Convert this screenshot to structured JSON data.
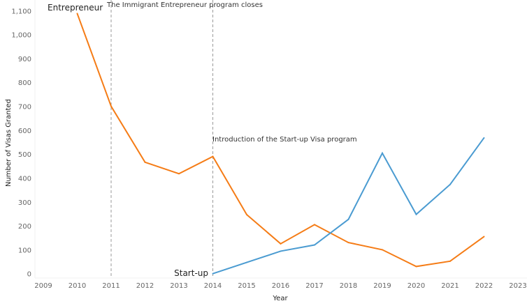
{
  "chart_data": {
    "type": "line",
    "title": "",
    "xlabel": "Year",
    "ylabel": "Number of Visas Granted",
    "xlim": [
      2009,
      2023
    ],
    "ylim": [
      0,
      1100
    ],
    "x_ticks": [
      "2009",
      "2010",
      "2011",
      "2012",
      "2013",
      "2014",
      "2015",
      "2016",
      "2017",
      "2018",
      "2019",
      "2020",
      "2021",
      "2022",
      "2023"
    ],
    "y_ticks": [
      "0",
      "100",
      "200",
      "300",
      "400",
      "500",
      "600",
      "700",
      "800",
      "900",
      "1,000",
      "1,100"
    ],
    "grid": false,
    "series": [
      {
        "name": "Entrepreneur",
        "color": "#f57c16",
        "x": [
          2010,
          2011,
          2012,
          2013,
          2014,
          2015,
          2016,
          2017,
          2018,
          2019,
          2020,
          2021,
          2022
        ],
        "values": [
          1088,
          700,
          466,
          418,
          490,
          247,
          125,
          205,
          130,
          100,
          30,
          52,
          155
        ]
      },
      {
        "name": "Start-up",
        "color": "#4a9bd1",
        "x": [
          2014,
          2015,
          2016,
          2017,
          2018,
          2019,
          2020,
          2021,
          2022
        ],
        "values": [
          0,
          47,
          94,
          120,
          227,
          504,
          248,
          373,
          568
        ]
      }
    ],
    "annotations": [
      {
        "text": "The Immigrant Entrepreneur program closes",
        "x": 2011
      },
      {
        "text": "Introduction of the Start-up Visa program",
        "x": 2014
      }
    ]
  }
}
